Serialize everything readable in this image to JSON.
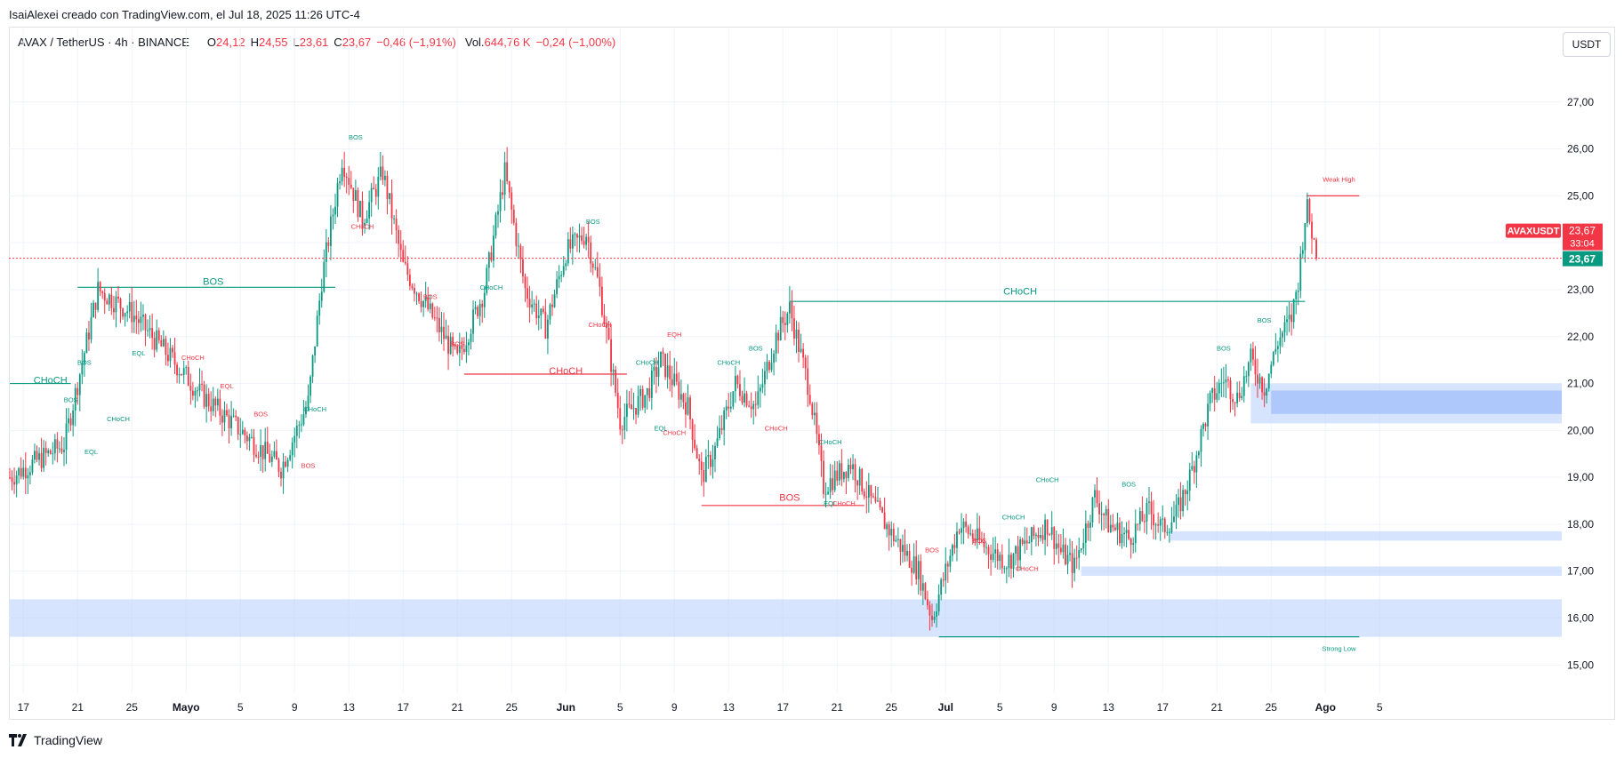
{
  "header": {
    "credit": "IsaiAlexei creado con TradingView.com, el Jul 18, 2025 11:26 UTC-4"
  },
  "legend": {
    "symbol": "AVAX / TetherUS · 4h · BINANCE",
    "o_label": "O",
    "o_value": "24,12",
    "h_label": "H",
    "h_value": "24,55",
    "l_label": "L",
    "l_value": "23,61",
    "c_label": "C",
    "c_value": "23,67",
    "change": "−0,46 (−1,91%)",
    "vol_label": "Vol.",
    "vol_value": "644,76 K",
    "vol_change": "−0,24 (−1,00%)"
  },
  "currency_button": "USDT",
  "footer": {
    "brand": "TradingView"
  },
  "colors": {
    "up": "#089981",
    "down": "#f23645",
    "zone": "#bbd2fb",
    "zone_strong": "#a7c3fa",
    "grid": "#f0f3fa"
  },
  "chart_data": {
    "type": "candlestick",
    "instrument": "AVAX / TetherUS",
    "interval": "4h",
    "exchange": "BINANCE",
    "y_axis": {
      "ticks": [
        "27,00",
        "26,00",
        "25,00",
        "24,00",
        "23,00",
        "22,00",
        "21,00",
        "20,00",
        "19,00",
        "18,00",
        "17,00",
        "16,00",
        "15,00"
      ],
      "tick_values": [
        27,
        26,
        25,
        24,
        23,
        22,
        21,
        20,
        19,
        18,
        17,
        16,
        15
      ],
      "ylim": [
        14.4,
        28.0
      ]
    },
    "x_axis": {
      "ticks": [
        "17",
        "21",
        "25",
        "Mayo",
        "5",
        "9",
        "13",
        "17",
        "21",
        "25",
        "Jun",
        "5",
        "9",
        "13",
        "17",
        "21",
        "25",
        "Jul",
        "5",
        "9",
        "13",
        "17",
        "21",
        "25",
        "Ago",
        "5"
      ]
    },
    "price_path": [
      {
        "d": 0,
        "p": 19.0
      },
      {
        "d": 4,
        "p": 19.7
      },
      {
        "d": 5,
        "p": 21.0
      },
      {
        "d": 6.5,
        "p": 23.0
      },
      {
        "d": 9,
        "p": 22.5
      },
      {
        "d": 12,
        "p": 21.5
      },
      {
        "d": 14,
        "p": 20.8
      },
      {
        "d": 17,
        "p": 20.0
      },
      {
        "d": 20,
        "p": 19.2
      },
      {
        "d": 22,
        "p": 20.6
      },
      {
        "d": 23,
        "p": 23.2
      },
      {
        "d": 24.5,
        "p": 25.8
      },
      {
        "d": 26,
        "p": 24.5
      },
      {
        "d": 27.5,
        "p": 25.5
      },
      {
        "d": 29,
        "p": 23.5
      },
      {
        "d": 31,
        "p": 22.5
      },
      {
        "d": 33,
        "p": 21.5
      },
      {
        "d": 35,
        "p": 23.0
      },
      {
        "d": 36.5,
        "p": 25.5
      },
      {
        "d": 38,
        "p": 23.0
      },
      {
        "d": 39.5,
        "p": 22.2
      },
      {
        "d": 41,
        "p": 23.8
      },
      {
        "d": 42.5,
        "p": 24.2
      },
      {
        "d": 43.5,
        "p": 23.0
      },
      {
        "d": 45,
        "p": 20.2
      },
      {
        "d": 47,
        "p": 20.8
      },
      {
        "d": 48,
        "p": 21.5
      },
      {
        "d": 50,
        "p": 20.5
      },
      {
        "d": 51,
        "p": 19.0
      },
      {
        "d": 52,
        "p": 19.6
      },
      {
        "d": 53.5,
        "p": 21.0
      },
      {
        "d": 55,
        "p": 20.5
      },
      {
        "d": 56.5,
        "p": 22.0
      },
      {
        "d": 57.5,
        "p": 22.6
      },
      {
        "d": 59,
        "p": 20.8
      },
      {
        "d": 60,
        "p": 18.8
      },
      {
        "d": 62,
        "p": 19.3
      },
      {
        "d": 63.5,
        "p": 18.5
      },
      {
        "d": 65,
        "p": 17.8
      },
      {
        "d": 67,
        "p": 17.0
      },
      {
        "d": 68,
        "p": 16.0
      },
      {
        "d": 69,
        "p": 17.0
      },
      {
        "d": 70,
        "p": 18.0
      },
      {
        "d": 72,
        "p": 17.5
      },
      {
        "d": 73.5,
        "p": 17.2
      },
      {
        "d": 75,
        "p": 17.6
      },
      {
        "d": 76.5,
        "p": 18.0
      },
      {
        "d": 77.5,
        "p": 17.4
      },
      {
        "d": 78.5,
        "p": 17.1
      },
      {
        "d": 80,
        "p": 18.6
      },
      {
        "d": 81,
        "p": 18.0
      },
      {
        "d": 82.5,
        "p": 17.7
      },
      {
        "d": 84,
        "p": 18.3
      },
      {
        "d": 85,
        "p": 17.9
      },
      {
        "d": 86,
        "p": 18.2
      },
      {
        "d": 87,
        "p": 19.0
      },
      {
        "d": 88.5,
        "p": 20.6
      },
      {
        "d": 89.5,
        "p": 21.1
      },
      {
        "d": 90.5,
        "p": 20.7
      },
      {
        "d": 91.5,
        "p": 21.5
      },
      {
        "d": 92.5,
        "p": 20.9
      },
      {
        "d": 93.5,
        "p": 21.9
      },
      {
        "d": 94.5,
        "p": 22.4
      },
      {
        "d": 95,
        "p": 23.2
      },
      {
        "d": 95.6,
        "p": 24.8
      },
      {
        "d": 96.4,
        "p": 23.67
      }
    ],
    "current_price": {
      "label": "AVAXUSDT",
      "price": "23,67",
      "countdown": "33:04",
      "value": 23.67
    },
    "annotations": {
      "large": [
        {
          "text": "CHoCH",
          "d": 3,
          "p": 21.0,
          "color": "up"
        },
        {
          "text": "BOS",
          "d": 15,
          "p": 23.1,
          "color": "up"
        },
        {
          "text": "CHoCH",
          "d": 41,
          "p": 21.2,
          "color": "down"
        },
        {
          "text": "BOS",
          "d": 57.5,
          "p": 18.5,
          "color": "down"
        },
        {
          "text": "CHoCH",
          "d": 74.5,
          "p": 22.9,
          "color": "up"
        }
      ],
      "small": [
        {
          "text": "BOS",
          "d": 5.5,
          "p": 21.4,
          "color": "up"
        },
        {
          "text": "BOS",
          "d": 4.5,
          "p": 20.6,
          "color": "up"
        },
        {
          "text": "EQL",
          "d": 6,
          "p": 19.5,
          "color": "up"
        },
        {
          "text": "CHoCH",
          "d": 8,
          "p": 20.2,
          "color": "up"
        },
        {
          "text": "EQL",
          "d": 9.5,
          "p": 21.6,
          "color": "up"
        },
        {
          "text": "CHoCH",
          "d": 13.5,
          "p": 21.5,
          "color": "down"
        },
        {
          "text": "EQL",
          "d": 16,
          "p": 20.9,
          "color": "down"
        },
        {
          "text": "BOS",
          "d": 18.5,
          "p": 20.3,
          "color": "down"
        },
        {
          "text": "BOS",
          "d": 22,
          "p": 19.2,
          "color": "down"
        },
        {
          "text": "CHoCH",
          "d": 22.5,
          "p": 20.4,
          "color": "up"
        },
        {
          "text": "BOS",
          "d": 25.5,
          "p": 26.2,
          "color": "up"
        },
        {
          "text": "CHoCH",
          "d": 26,
          "p": 24.3,
          "color": "down"
        },
        {
          "text": "BOS",
          "d": 31,
          "p": 22.8,
          "color": "down"
        },
        {
          "text": "BOS",
          "d": 33,
          "p": 21.8,
          "color": "down"
        },
        {
          "text": "CHoCH",
          "d": 35.5,
          "p": 23.0,
          "color": "up"
        },
        {
          "text": "BOS",
          "d": 43,
          "p": 24.4,
          "color": "up"
        },
        {
          "text": "CHoCH",
          "d": 43.5,
          "p": 22.2,
          "color": "down"
        },
        {
          "text": "EQH",
          "d": 49,
          "p": 22.0,
          "color": "down"
        },
        {
          "text": "CHoCH",
          "d": 47,
          "p": 21.4,
          "color": "up"
        },
        {
          "text": "EQL",
          "d": 48,
          "p": 20.0,
          "color": "up"
        },
        {
          "text": "CHoCH",
          "d": 49,
          "p": 19.9,
          "color": "down"
        },
        {
          "text": "BOS",
          "d": 55,
          "p": 21.7,
          "color": "up"
        },
        {
          "text": "CHoCH",
          "d": 53,
          "p": 21.4,
          "color": "up"
        },
        {
          "text": "CHoCH",
          "d": 56.5,
          "p": 20.0,
          "color": "down"
        },
        {
          "text": "CHoCH",
          "d": 60.5,
          "p": 19.7,
          "color": "up"
        },
        {
          "text": "EQL",
          "d": 60.5,
          "p": 18.4,
          "color": "up"
        },
        {
          "text": "CHoCH",
          "d": 61.5,
          "p": 18.4,
          "color": "down"
        },
        {
          "text": "BOS",
          "d": 68,
          "p": 17.4,
          "color": "down"
        },
        {
          "text": "BOS",
          "d": 71.5,
          "p": 17.6,
          "color": "down"
        },
        {
          "text": "CHoCH",
          "d": 74,
          "p": 18.1,
          "color": "up"
        },
        {
          "text": "CHoCH",
          "d": 76.5,
          "p": 18.9,
          "color": "up"
        },
        {
          "text": "CHoCH",
          "d": 75,
          "p": 17.0,
          "color": "down"
        },
        {
          "text": "BOS",
          "d": 82.5,
          "p": 18.8,
          "color": "up"
        },
        {
          "text": "BOS",
          "d": 89.5,
          "p": 21.7,
          "color": "up"
        },
        {
          "text": "BOS",
          "d": 92.5,
          "p": 22.3,
          "color": "up"
        },
        {
          "text": "Weak High",
          "d": 98,
          "p": 25.3,
          "color": "down"
        },
        {
          "text": "Strong Low",
          "d": 98,
          "p": 15.3,
          "color": "up"
        }
      ]
    },
    "levels": [
      {
        "from": 0,
        "to": 4.5,
        "p": 21.0,
        "color": "up"
      },
      {
        "from": 5,
        "to": 24,
        "p": 23.05,
        "color": "up"
      },
      {
        "from": 33.5,
        "to": 45.5,
        "p": 21.2,
        "color": "down"
      },
      {
        "from": 51,
        "to": 63,
        "p": 18.4,
        "color": "down"
      },
      {
        "from": 57.5,
        "to": 95.5,
        "p": 22.75,
        "color": "up"
      },
      {
        "from": 95.6,
        "to": 99.5,
        "p": 25.0,
        "color": "down"
      },
      {
        "from": 68.5,
        "to": 99.5,
        "p": 15.6,
        "color": "up"
      }
    ],
    "zones": [
      {
        "from": 0,
        "to": 118,
        "low": 15.6,
        "high": 16.4,
        "strength": "light"
      },
      {
        "from": 91.5,
        "to": 118,
        "low": 20.15,
        "high": 21.0,
        "strength": "light"
      },
      {
        "from": 93,
        "to": 118,
        "low": 20.35,
        "high": 20.85,
        "strength": "strong"
      },
      {
        "from": 85.5,
        "to": 118,
        "low": 17.65,
        "high": 17.85,
        "strength": "light"
      },
      {
        "from": 79,
        "to": 118,
        "low": 16.9,
        "high": 17.1,
        "strength": "light"
      }
    ]
  }
}
